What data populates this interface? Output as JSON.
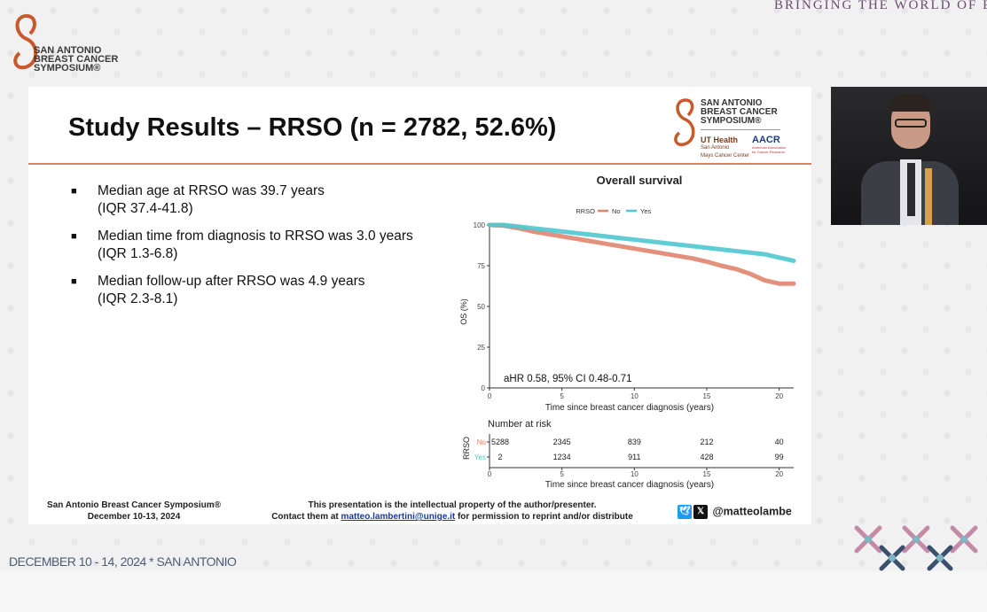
{
  "top_banner": "BRINGING THE WORLD OF EP TO",
  "logo": {
    "line1": "SAN ANTONIO",
    "line2": "BREAST CANCER",
    "line3": "SYMPOSIUM®"
  },
  "slide": {
    "title": "Study Results – RRSO (n = 2782, 52.6%)",
    "logo": {
      "line1": "SAN ANTONIO",
      "line2": "BREAST CANCER",
      "line3": "SYMPOSIUM®",
      "ut_health": "UT Health",
      "ut_sub": "San Antonio",
      "ut_sub2": "Mays Cancer Center",
      "aacr": "AACR",
      "aacr_sub": "American Association for Cancer Research"
    },
    "bullets": [
      {
        "line1": "Median age at RRSO was 39.7 years",
        "line2": "(IQR 37.4-41.8)"
      },
      {
        "line1": "Median time from diagnosis to RRSO was 3.0 years",
        "line2": "(IQR 1.3-6.8)"
      },
      {
        "line1": "Median follow-up after RRSO was 4.9 years",
        "line2": "(IQR 2.3-8.1)"
      }
    ],
    "footer_left": {
      "line1": "San Antonio Breast Cancer Symposium®",
      "line2": "December 10-13, 2024"
    },
    "footer_mid": {
      "line1": "This presentation is the intellectual property of the author/presenter.",
      "line2_pre": "Contact them at ",
      "email": "matteo.lambertini@unige.it",
      "line2_post": " for permission to reprint and/or distribute"
    },
    "footer_right": {
      "handle": "@matteolambe"
    }
  },
  "bottom_text": "DECEMBER 10 - 14, 2024 * SAN ANTONIO",
  "colors": {
    "no": "#e0856f",
    "yes": "#4fc8cf",
    "rule": "#d9835f"
  },
  "chart_data": {
    "type": "line",
    "title": "Overall survival",
    "legend_title": "RRSO",
    "legend_placement": "top",
    "xlabel": "Time since breast cancer diagnosis (years)",
    "ylabel": "OS (%)",
    "xlim": [
      0,
      21
    ],
    "ylim": [
      0,
      100
    ],
    "xticks": [
      0,
      5,
      10,
      15,
      20
    ],
    "yticks": [
      0,
      25,
      50,
      75,
      100
    ],
    "annotation": "aHR 0.58, 95% CI 0.48-0.71",
    "series": [
      {
        "name": "No",
        "color": "#e0856f",
        "x": [
          0,
          1,
          2,
          3,
          4,
          5,
          6,
          7,
          8,
          9,
          10,
          11,
          12,
          13,
          14,
          15,
          16,
          17,
          18,
          19,
          20,
          21
        ],
        "y": [
          100,
          99.5,
          98,
          96,
          94.5,
          93,
          91.5,
          90,
          88.5,
          87,
          85.5,
          84,
          82.5,
          81,
          79.5,
          77.5,
          75,
          73,
          70,
          66,
          64,
          64
        ]
      },
      {
        "name": "Yes",
        "color": "#4fc8cf",
        "x": [
          0,
          1,
          2,
          3,
          4,
          5,
          6,
          7,
          8,
          9,
          10,
          11,
          12,
          13,
          14,
          15,
          16,
          17,
          18,
          19,
          20,
          21
        ],
        "y": [
          100,
          100,
          99,
          98,
          97,
          96,
          95,
          94,
          93,
          92,
          91,
          90,
          89,
          88,
          87,
          86,
          85,
          84,
          83,
          82,
          80,
          78
        ]
      }
    ],
    "risk_table": {
      "title": "Number at risk",
      "ylabel": "RRSO",
      "xlabel": "Time since breast cancer diagnosis (years)",
      "times": [
        0,
        5,
        10,
        15,
        20
      ],
      "rows": [
        {
          "name": "No",
          "color": "#e0856f",
          "values": [
            "5288",
            "2345",
            "839",
            "212",
            "40"
          ]
        },
        {
          "name": "Yes",
          "color": "#4fc8cf",
          "values": [
            "2",
            "1234",
            "911",
            "428",
            "99"
          ]
        }
      ]
    }
  }
}
